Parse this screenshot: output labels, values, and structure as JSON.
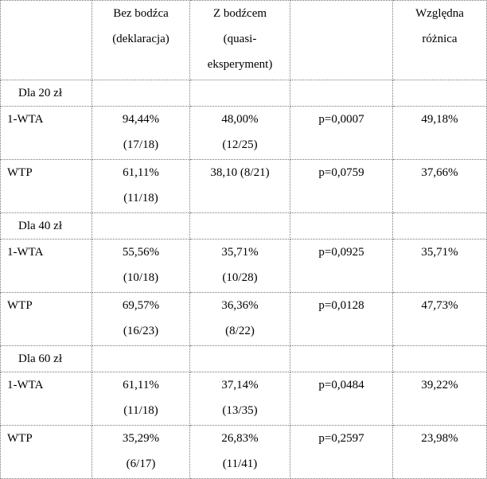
{
  "header": {
    "col1": "",
    "col2": [
      "Bez bodźca",
      "(deklaracja)"
    ],
    "col3": [
      "Z bodźcem",
      "(quasi-",
      "eksperyment)"
    ],
    "col4": "",
    "col5": [
      "Względna",
      "różnica"
    ]
  },
  "groups": [
    {
      "label": "Dla 20 zł",
      "rows": [
        {
          "name": "1-WTA",
          "bez": [
            "94,44%",
            "(17/18)"
          ],
          "z": [
            "48,00%",
            "(12/25)"
          ],
          "p": "p=0,0007",
          "diff": "49,18%"
        },
        {
          "name": "WTP",
          "bez": [
            "61,11%",
            "(11/18)"
          ],
          "z": [
            "38,10 (8/21)"
          ],
          "p": "p=0,0759",
          "diff": "37,66%"
        }
      ]
    },
    {
      "label": "Dla 40 zł",
      "rows": [
        {
          "name": "1-WTA",
          "bez": [
            "55,56%",
            "(10/18)"
          ],
          "z": [
            "35,71%",
            "(10/28)"
          ],
          "p": "p=0,0925",
          "diff": "35,71%"
        },
        {
          "name": "WTP",
          "bez": [
            "69,57%",
            "(16/23)"
          ],
          "z": [
            "36,36%",
            "(8/22)"
          ],
          "p": "p=0,0128",
          "diff": "47,73%"
        }
      ]
    },
    {
      "label": "Dla 60 zł",
      "rows": [
        {
          "name": "1-WTA",
          "bez": [
            "61,11%",
            "(11/18)"
          ],
          "z": [
            "37,14%",
            "(13/35)"
          ],
          "p": "p=0,0484",
          "diff": "39,22%"
        },
        {
          "name": "WTP",
          "bez": [
            "35,29%",
            "(6/17)"
          ],
          "z": [
            "26,83%",
            "(11/41)"
          ],
          "p": "p=0,2597",
          "diff": "23,98%"
        }
      ]
    }
  ]
}
